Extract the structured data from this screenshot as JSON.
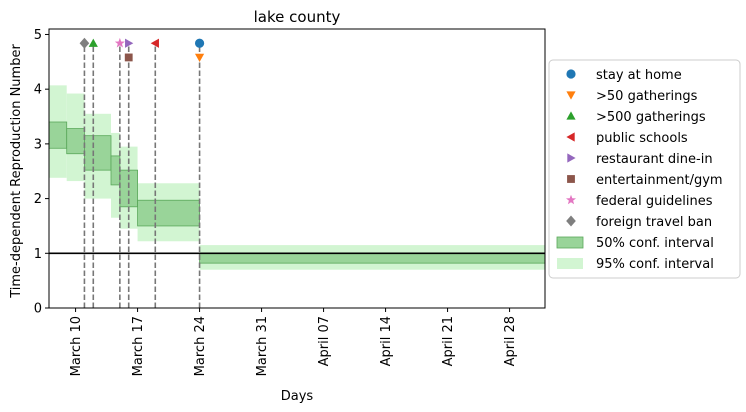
{
  "chart_data": {
    "type": "step-area",
    "title": "lake county",
    "xlabel": "Days",
    "ylabel": "Time-dependent Reproduction Number",
    "xlim": [
      "2020-03-07",
      "2020-05-02"
    ],
    "ylim": [
      0,
      5.1
    ],
    "yticks": [
      0,
      1,
      2,
      3,
      4,
      5
    ],
    "xticks": [
      {
        "date": "2020-03-10",
        "label": "March 10"
      },
      {
        "date": "2020-03-17",
        "label": "March 17"
      },
      {
        "date": "2020-03-24",
        "label": "March 24"
      },
      {
        "date": "2020-03-31",
        "label": "March 31"
      },
      {
        "date": "2020-04-07",
        "label": "April 07"
      },
      {
        "date": "2020-04-14",
        "label": "April 14"
      },
      {
        "date": "2020-04-21",
        "label": "April 21"
      },
      {
        "date": "2020-04-28",
        "label": "April 28"
      }
    ],
    "reference_line": 1,
    "intervals_95": [
      {
        "start": "2020-03-07",
        "end": "2020-03-09",
        "low": 2.38,
        "high": 4.07
      },
      {
        "start": "2020-03-09",
        "end": "2020-03-11",
        "low": 2.32,
        "high": 3.92
      },
      {
        "start": "2020-03-11",
        "end": "2020-03-14",
        "low": 2.0,
        "high": 3.55
      },
      {
        "start": "2020-03-14",
        "end": "2020-03-15",
        "low": 1.65,
        "high": 3.2
      },
      {
        "start": "2020-03-15",
        "end": "2020-03-17",
        "low": 1.45,
        "high": 2.95
      },
      {
        "start": "2020-03-17",
        "end": "2020-03-24",
        "low": 1.22,
        "high": 2.28
      },
      {
        "start": "2020-03-24",
        "end": "2020-05-02",
        "low": 0.7,
        "high": 1.15
      }
    ],
    "intervals_50": [
      {
        "start": "2020-03-07",
        "end": "2020-03-09",
        "low": 2.92,
        "high": 3.4
      },
      {
        "start": "2020-03-09",
        "end": "2020-03-11",
        "low": 2.82,
        "high": 3.28
      },
      {
        "start": "2020-03-11",
        "end": "2020-03-14",
        "low": 2.52,
        "high": 3.15
      },
      {
        "start": "2020-03-14",
        "end": "2020-03-15",
        "low": 2.25,
        "high": 2.78
      },
      {
        "start": "2020-03-15",
        "end": "2020-03-17",
        "low": 1.85,
        "high": 2.52
      },
      {
        "start": "2020-03-17",
        "end": "2020-03-24",
        "low": 1.5,
        "high": 1.97
      },
      {
        "start": "2020-03-24",
        "end": "2020-05-02",
        "low": 0.82,
        "high": 1.0
      }
    ],
    "interventions": [
      {
        "name": "stay at home",
        "date": "2020-03-24",
        "y": 4.84,
        "marker": "circle",
        "color": "#1f77b4"
      },
      {
        "name": ">50 gatherings",
        "date": "2020-03-24",
        "y": 4.58,
        "marker": "triangle-down",
        "color": "#ff7f0e"
      },
      {
        "name": ">500 gatherings",
        "date": "2020-03-12",
        "y": 4.84,
        "marker": "triangle-up",
        "color": "#2ca02c"
      },
      {
        "name": "public schools",
        "date": "2020-03-19",
        "y": 4.84,
        "marker": "triangle-left",
        "color": "#d62728"
      },
      {
        "name": "restaurant dine-in",
        "date": "2020-03-16",
        "y": 4.84,
        "marker": "triangle-right",
        "color": "#9467bd"
      },
      {
        "name": "entertainment/gym",
        "date": "2020-03-16",
        "y": 4.58,
        "marker": "square",
        "color": "#8c564b"
      },
      {
        "name": "federal guidelines",
        "date": "2020-03-15",
        "y": 4.84,
        "marker": "star",
        "color": "#e377c2"
      },
      {
        "name": "foreign travel ban",
        "date": "2020-03-11",
        "y": 4.84,
        "marker": "diamond",
        "color": "#7f7f7f"
      }
    ],
    "intervention_lines": [
      "2020-03-11",
      "2020-03-12",
      "2020-03-15",
      "2020-03-16",
      "2020-03-19",
      "2020-03-24"
    ],
    "legend": {
      "placement": "right",
      "entries": [
        {
          "label": "stay at home",
          "marker": "circle",
          "color": "#1f77b4"
        },
        {
          "label": ">50 gatherings",
          "marker": "triangle-down",
          "color": "#ff7f0e"
        },
        {
          "label": ">500 gatherings",
          "marker": "triangle-up",
          "color": "#2ca02c"
        },
        {
          "label": "public schools",
          "marker": "triangle-left",
          "color": "#d62728"
        },
        {
          "label": "restaurant dine-in",
          "marker": "triangle-right",
          "color": "#9467bd"
        },
        {
          "label": "entertainment/gym",
          "marker": "square",
          "color": "#8c564b"
        },
        {
          "label": "federal guidelines",
          "marker": "star",
          "color": "#e377c2"
        },
        {
          "label": "foreign travel ban",
          "marker": "diamond",
          "color": "#7f7f7f"
        },
        {
          "label": "50% conf. interval",
          "marker": "patch",
          "color": "#99d499"
        },
        {
          "label": "95% conf. interval",
          "marker": "patch",
          "color": "#d2f5d2"
        }
      ]
    },
    "colors": {
      "ci50": "#99d499",
      "ci50_edge": "#5aa85a",
      "ci95": "#d2f5d2",
      "vline": "#777777",
      "reference": "#000000"
    }
  }
}
